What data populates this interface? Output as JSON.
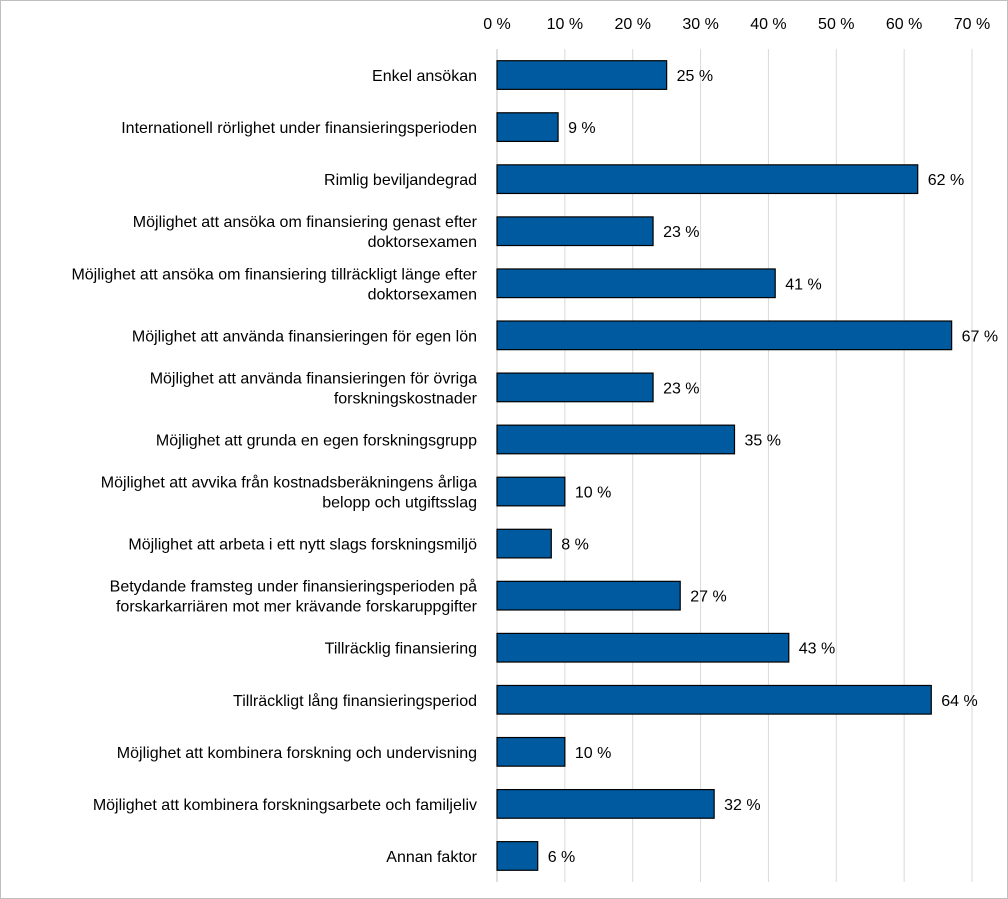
{
  "chart_data": {
    "type": "bar",
    "orientation": "horizontal",
    "title": "",
    "xlabel": "",
    "ylabel": "",
    "xlim": [
      0,
      70
    ],
    "x_axis_position": "top",
    "grid": true,
    "legend": "none",
    "tick_labels": [
      "0 %",
      "10 %",
      "20 %",
      "30 %",
      "40 %",
      "50 %",
      "60 %",
      "70 %"
    ],
    "tick_values": [
      0,
      10,
      20,
      30,
      40,
      50,
      60,
      70
    ],
    "categories": [
      [
        "Enkel ansökan"
      ],
      [
        "Internationell rörlighet under finansieringsperioden"
      ],
      [
        "Rimlig beviljandegrad"
      ],
      [
        "Möjlighet att ansöka om finansiering genast efter",
        "doktorsexamen"
      ],
      [
        "Möjlighet att ansöka om finansiering tillräckligt länge efter",
        "doktorsexamen"
      ],
      [
        "Möjlighet att använda finansieringen för egen lön"
      ],
      [
        "Möjlighet att använda finansieringen för övriga",
        "forskningskostnader"
      ],
      [
        "Möjlighet att grunda en egen forskningsgrupp"
      ],
      [
        "Möjlighet att avvika från kostnadsberäkningens årliga",
        "belopp och utgiftsslag"
      ],
      [
        "Möjlighet att arbeta i ett nytt slags forskningsmiljö"
      ],
      [
        "Betydande framsteg under finansieringsperioden på",
        "forskarkarriären mot mer krävande forskaruppgifter"
      ],
      [
        "Tillräcklig finansiering"
      ],
      [
        "Tillräckligt lång finansieringsperiod"
      ],
      [
        "Möjlighet att kombinera forskning och undervisning"
      ],
      [
        "Möjlighet att kombinera forskningsarbete och familjeliv"
      ],
      [
        "Annan faktor"
      ]
    ],
    "values": [
      25,
      9,
      62,
      23,
      41,
      67,
      23,
      35,
      10,
      8,
      27,
      43,
      64,
      10,
      32,
      6
    ],
    "data_labels": [
      "25 %",
      "9 %",
      "62 %",
      "23 %",
      "41 %",
      "67 %",
      "23 %",
      "35 %",
      "10 %",
      "8 %",
      "27 %",
      "43 %",
      "64 %",
      "10 %",
      "32 %",
      "6 %"
    ],
    "bar_color": "#005aa0",
    "bar_border_color": "#000000",
    "gridline_color": "#d9d9d9"
  }
}
